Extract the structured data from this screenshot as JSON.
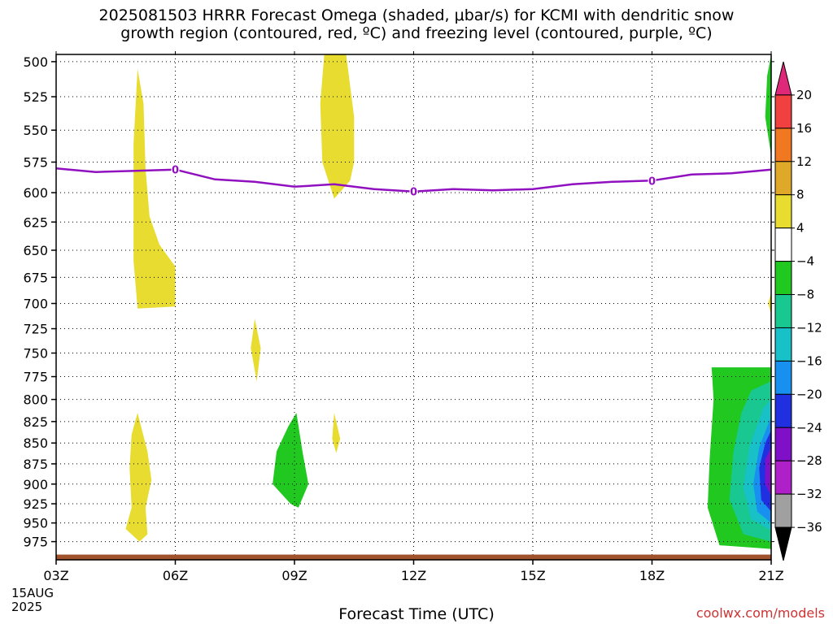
{
  "title_line1": "2025081503 HRRR Forecast Omega (shaded, μbar/s) for KCMI with dendritic snow",
  "title_line2": "growth region (contoured, red, ºC) and freezing level (contoured, purple, ºC)",
  "xlabel": "Forecast Time (UTC)",
  "credit": "coolwx.com/models",
  "date_label": {
    "day": "15AUG",
    "year": "2025"
  },
  "chart_data": {
    "type": "heatmap",
    "y_axis": {
      "label": "",
      "ticks": [
        500,
        525,
        550,
        575,
        600,
        625,
        650,
        675,
        700,
        725,
        750,
        775,
        800,
        825,
        850,
        875,
        900,
        925,
        950,
        975
      ],
      "range": [
        495,
        1000
      ]
    },
    "x_axis": {
      "ticks": [
        "03Z",
        "06Z",
        "09Z",
        "12Z",
        "15Z",
        "18Z",
        "21Z"
      ],
      "hours": [
        3,
        6,
        9,
        12,
        15,
        18,
        21
      ],
      "range": [
        3,
        21
      ]
    },
    "grid": true,
    "colorbar": {
      "labels": [
        "20",
        "16",
        "12",
        "8",
        "4",
        "−4",
        "−8",
        "−12",
        "−16",
        "−20",
        "−24",
        "−28",
        "−32",
        "−36"
      ],
      "colors": [
        "#e0287a",
        "#f04040",
        "#f07820",
        "#e0a828",
        "#e8dc30",
        "#ffffff",
        "#20c820",
        "#18c890",
        "#18c0c8",
        "#1890f0",
        "#2030e0",
        "#8010c8",
        "#b020c8",
        "#a0a0a0",
        "#000000"
      ]
    },
    "freezing_level": {
      "color": "#9010c0",
      "hours": [
        3,
        4,
        5,
        6,
        7,
        8,
        9,
        10,
        11,
        12,
        13,
        14,
        15,
        16,
        17,
        18,
        19,
        20,
        21
      ],
      "pressure": [
        580,
        583,
        582,
        581,
        589,
        591,
        595,
        593,
        597,
        599,
        597,
        598,
        597,
        593,
        591,
        590,
        585,
        584,
        581
      ],
      "labels": [
        {
          "hour": 6,
          "text": "0"
        },
        {
          "hour": 12,
          "text": "0"
        },
        {
          "hour": 18,
          "text": "0"
        }
      ]
    },
    "shaded_regions": [
      {
        "name": "yellow-plume-05z",
        "color": "#e8dc30",
        "points": [
          [
            5.05,
            505
          ],
          [
            5.2,
            530
          ],
          [
            5.25,
            580
          ],
          [
            5.35,
            620
          ],
          [
            5.6,
            645
          ],
          [
            6.0,
            665
          ],
          [
            6.0,
            703
          ],
          [
            5.05,
            705
          ],
          [
            4.95,
            660
          ],
          [
            4.95,
            560
          ]
        ]
      },
      {
        "name": "yellow-plume-10z",
        "color": "#e8dc30",
        "points": [
          [
            10.3,
            492
          ],
          [
            10.5,
            540
          ],
          [
            10.5,
            575
          ],
          [
            10.4,
            590
          ],
          [
            10.0,
            605
          ],
          [
            9.7,
            575
          ],
          [
            9.65,
            530
          ],
          [
            9.75,
            492
          ]
        ]
      },
      {
        "name": "yellow-blob-08z",
        "color": "#e8dc30",
        "points": [
          [
            8.0,
            715
          ],
          [
            8.15,
            745
          ],
          [
            8.05,
            780
          ],
          [
            7.9,
            745
          ]
        ]
      },
      {
        "name": "yellow-plume-low-05z",
        "color": "#e8dc30",
        "points": [
          [
            5.05,
            815
          ],
          [
            5.3,
            860
          ],
          [
            5.4,
            895
          ],
          [
            5.25,
            930
          ],
          [
            5.3,
            965
          ],
          [
            5.1,
            975
          ],
          [
            4.75,
            958
          ],
          [
            4.9,
            930
          ],
          [
            4.85,
            880
          ],
          [
            4.9,
            840
          ]
        ]
      },
      {
        "name": "yellow-blob-10z",
        "color": "#e8dc30",
        "points": [
          [
            10.0,
            815
          ],
          [
            10.15,
            845
          ],
          [
            10.05,
            862
          ],
          [
            9.95,
            845
          ]
        ]
      },
      {
        "name": "green-blob-09z",
        "color": "#20c820",
        "points": [
          [
            9.05,
            815
          ],
          [
            9.2,
            860
          ],
          [
            9.35,
            900
          ],
          [
            9.1,
            930
          ],
          [
            8.9,
            925
          ],
          [
            8.45,
            900
          ],
          [
            8.55,
            860
          ],
          [
            8.85,
            830
          ]
        ]
      },
      {
        "name": "green-mass-21z",
        "color": "#20c820",
        "points": [
          [
            19.5,
            765
          ],
          [
            21,
            765
          ],
          [
            21,
            985
          ],
          [
            19.7,
            980
          ],
          [
            19.4,
            930
          ],
          [
            19.45,
            870
          ],
          [
            19.55,
            800
          ]
        ]
      },
      {
        "name": "teal-core-21z",
        "color": "#18c890",
        "points": [
          [
            20.5,
            790
          ],
          [
            21,
            780
          ],
          [
            21,
            975
          ],
          [
            20.3,
            965
          ],
          [
            19.95,
            920
          ],
          [
            20.05,
            860
          ],
          [
            20.25,
            815
          ]
        ]
      },
      {
        "name": "cyan-core-21z",
        "color": "#18c0c8",
        "points": [
          [
            20.8,
            810
          ],
          [
            21,
            800
          ],
          [
            21,
            960
          ],
          [
            20.5,
            945
          ],
          [
            20.3,
            905
          ],
          [
            20.45,
            855
          ]
        ]
      },
      {
        "name": "lightblue-core-21z",
        "color": "#1890f0",
        "points": [
          [
            20.95,
            825
          ],
          [
            21,
            820
          ],
          [
            21,
            950
          ],
          [
            20.65,
            935
          ],
          [
            20.55,
            900
          ],
          [
            20.7,
            855
          ]
        ]
      },
      {
        "name": "blue-core-21z",
        "color": "#2030e0",
        "points": [
          [
            21,
            835
          ],
          [
            21,
            935
          ],
          [
            20.75,
            920
          ],
          [
            20.7,
            880
          ],
          [
            20.85,
            850
          ]
        ]
      },
      {
        "name": "purple-core-21z",
        "color": "#8010c8",
        "points": [
          [
            21,
            855
          ],
          [
            21,
            915
          ],
          [
            20.85,
            900
          ],
          [
            20.85,
            870
          ]
        ]
      },
      {
        "name": "green-sliver-top-21z",
        "color": "#20c820",
        "points": [
          [
            21,
            492
          ],
          [
            21,
            570
          ],
          [
            20.85,
            540
          ],
          [
            20.9,
            510
          ]
        ]
      },
      {
        "name": "yellow-sliver-700-21z",
        "color": "#e8dc30",
        "points": [
          [
            21,
            690
          ],
          [
            21,
            710
          ],
          [
            20.92,
            700
          ]
        ]
      }
    ],
    "ground": {
      "color": "#a0522d",
      "pressure": 995
    }
  }
}
